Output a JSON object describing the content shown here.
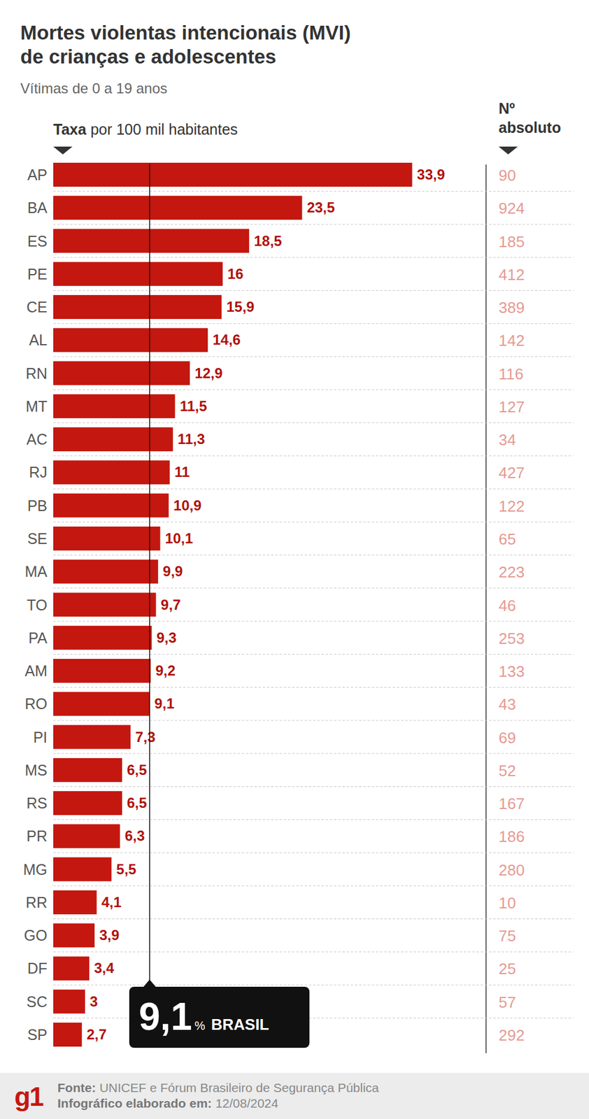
{
  "chart_data": {
    "type": "bar",
    "orientation": "horizontal",
    "title": [
      "Mortes violentas intencionais (MVI)",
      "de crianças e adolescentes"
    ],
    "subtitle": "Vítimas de 0 a 19 anos",
    "x_label_bold": "Taxa",
    "x_label": "por 100 mil habitantes",
    "categories": [
      "AP",
      "BA",
      "ES",
      "PE",
      "CE",
      "AL",
      "RN",
      "MT",
      "AC",
      "RJ",
      "PB",
      "SE",
      "MA",
      "TO",
      "PA",
      "AM",
      "RO",
      "PI",
      "MS",
      "RS",
      "PR",
      "MG",
      "RR",
      "GO",
      "DF",
      "SC",
      "SP"
    ],
    "values": [
      33.9,
      23.5,
      18.5,
      16,
      15.9,
      14.6,
      12.9,
      11.5,
      11.3,
      11,
      10.9,
      10.1,
      9.9,
      9.7,
      9.3,
      9.2,
      9.1,
      7.3,
      6.5,
      6.5,
      6.3,
      5.5,
      4.1,
      3.9,
      3.4,
      3,
      2.7
    ],
    "value_labels": [
      "33,9",
      "23,5",
      "18,5",
      "16",
      "15,9",
      "14,6",
      "12,9",
      "11,5",
      "11,3",
      "11",
      "10,9",
      "10,1",
      "9,9",
      "9,7",
      "9,3",
      "9,2",
      "9,1",
      "7,3",
      "6,5",
      "6,5",
      "6,3",
      "5,5",
      "4,1",
      "3,9",
      "3,4",
      "3",
      "2,7"
    ],
    "color": "#c4170f",
    "data_labels": true,
    "tick_labels": "y",
    "grid": false,
    "xlim": [
      0,
      40
    ],
    "absolute": {
      "header": [
        "Nº",
        "absoluto"
      ],
      "values": [
        90,
        924,
        185,
        412,
        389,
        142,
        116,
        127,
        34,
        427,
        122,
        65,
        223,
        46,
        253,
        133,
        43,
        69,
        52,
        167,
        186,
        280,
        10,
        75,
        25,
        57,
        292
      ]
    },
    "reference": {
      "value": 9.1,
      "label": "9,1",
      "unit": "%",
      "name": "BRASIL"
    },
    "logo": "g1",
    "source": {
      "label": "Fonte:",
      "text": "UNICEF e Fórum Brasileiro de Segurança Pública"
    },
    "date": {
      "label": "Infográfico elaborado em:",
      "text": "12/08/2024"
    }
  }
}
